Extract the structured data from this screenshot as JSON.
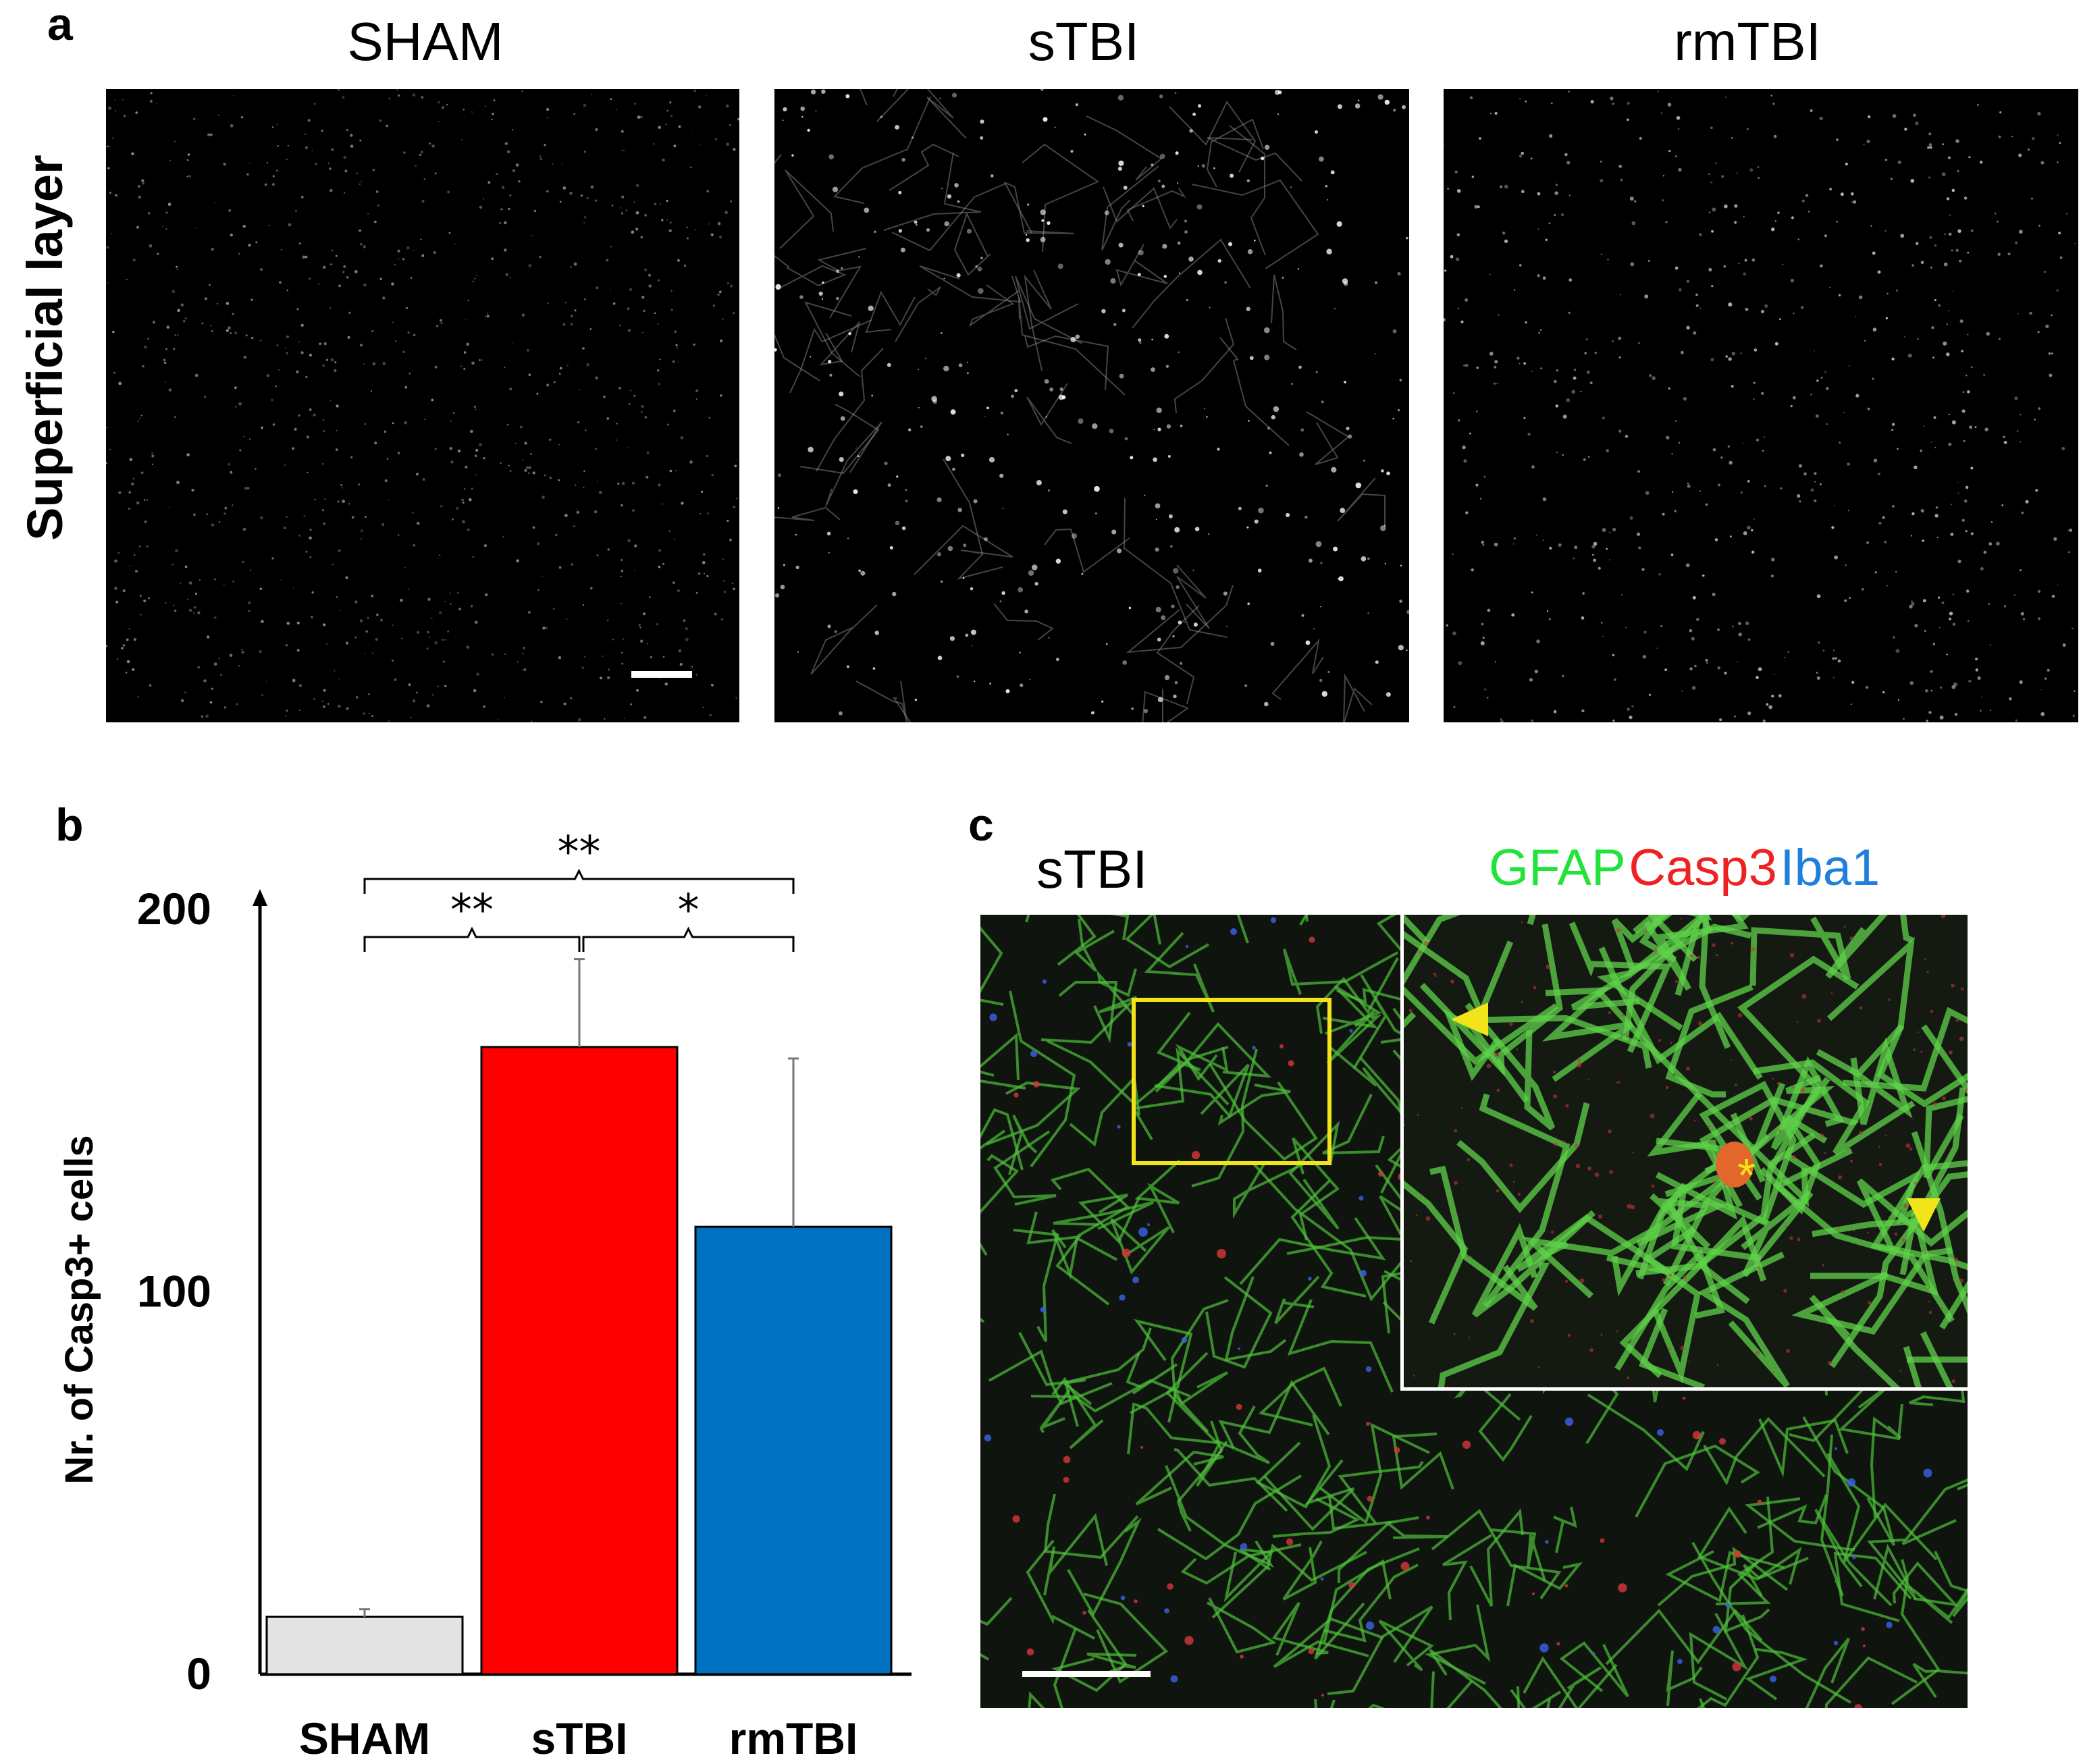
{
  "panel_a": {
    "letter": "a",
    "row_label": "Superficial layer",
    "columns": [
      "SHAM",
      "sTBI",
      "rmTBI"
    ]
  },
  "panel_b": {
    "letter": "b",
    "significance": {
      "sham_rmtbi": "**",
      "sham_stbi": "**",
      "stbi_rmtbi": "*"
    }
  },
  "panel_c": {
    "letter": "c",
    "condition": "sTBI",
    "legend": [
      {
        "label": "GFAP",
        "color": "#22e33a"
      },
      {
        "label": "Casp3",
        "color": "#ee2222"
      },
      {
        "label": "Iba1",
        "color": "#1e7fdc"
      }
    ]
  },
  "chart_data": {
    "type": "bar",
    "categories": [
      "SHAM",
      "sTBI",
      "rmTBI"
    ],
    "values": [
      15,
      164,
      117
    ],
    "errors": [
      2,
      23,
      44
    ],
    "colors": [
      "#e3e3e3",
      "#ff0000",
      "#0070c0"
    ],
    "ylabel": "Nr. of Casp3+ cells",
    "ylim": [
      0,
      200
    ],
    "yticks": [
      "0",
      "100",
      "200"
    ]
  }
}
